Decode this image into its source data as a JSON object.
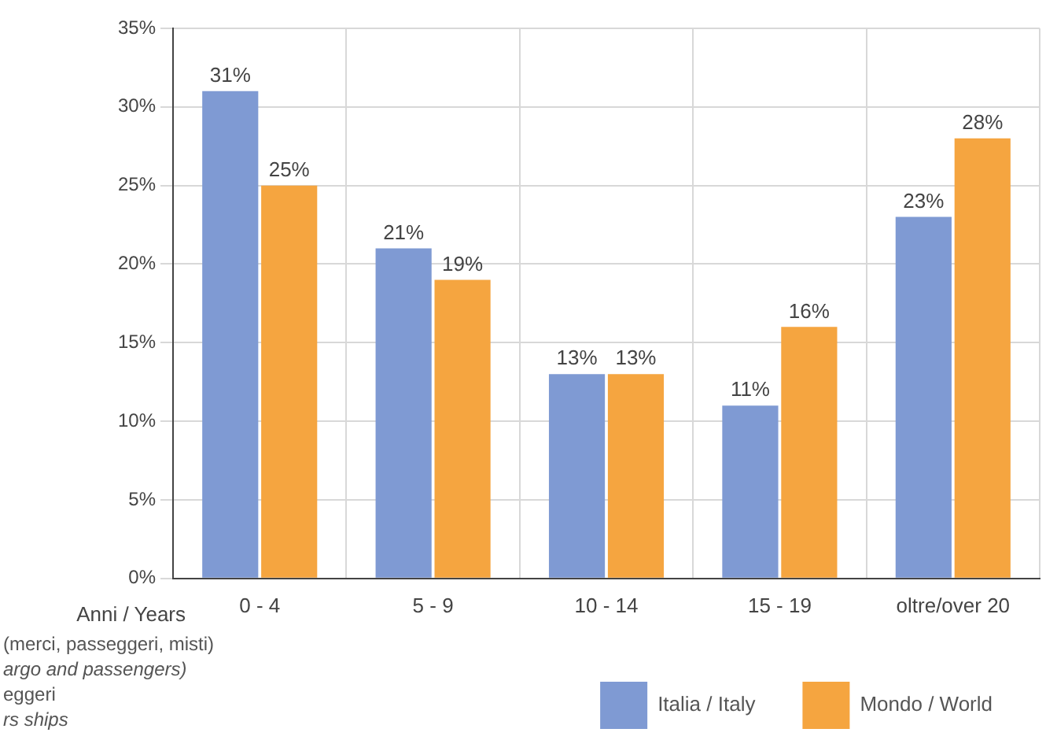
{
  "chart_data": {
    "type": "bar",
    "xlabel": "Anni / Years",
    "categories": [
      "0 - 4",
      "5 - 9",
      "10 - 14",
      "15 - 19",
      "oltre/over 20"
    ],
    "series": [
      {
        "name": "Italia / Italy",
        "color": "#7f9ad3",
        "values": [
          31,
          21,
          13,
          11,
          23
        ],
        "value_labels": [
          "31%",
          "21%",
          "13%",
          "11%",
          "23%"
        ]
      },
      {
        "name": "Mondo / World",
        "color": "#f5a540",
        "values": [
          25,
          19,
          13,
          16,
          28
        ],
        "value_labels": [
          "25%",
          "19%",
          "13%",
          "16%",
          "28%"
        ]
      }
    ],
    "ylim": [
      0,
      35
    ],
    "yticks": [
      {
        "value": 0,
        "label": "0%"
      },
      {
        "value": 5,
        "label": "5%"
      },
      {
        "value": 10,
        "label": "10%"
      },
      {
        "value": 15,
        "label": "15%"
      },
      {
        "value": 20,
        "label": "20%"
      },
      {
        "value": 25,
        "label": "25%"
      },
      {
        "value": 30,
        "label": "30%"
      },
      {
        "value": 35,
        "label": "35%"
      }
    ],
    "grid": true,
    "legend": "bottom right",
    "annotations": [
      "(merci, passeggeri, misti)",
      "argo and passengers)",
      "eggeri",
      "rs ships"
    ]
  }
}
